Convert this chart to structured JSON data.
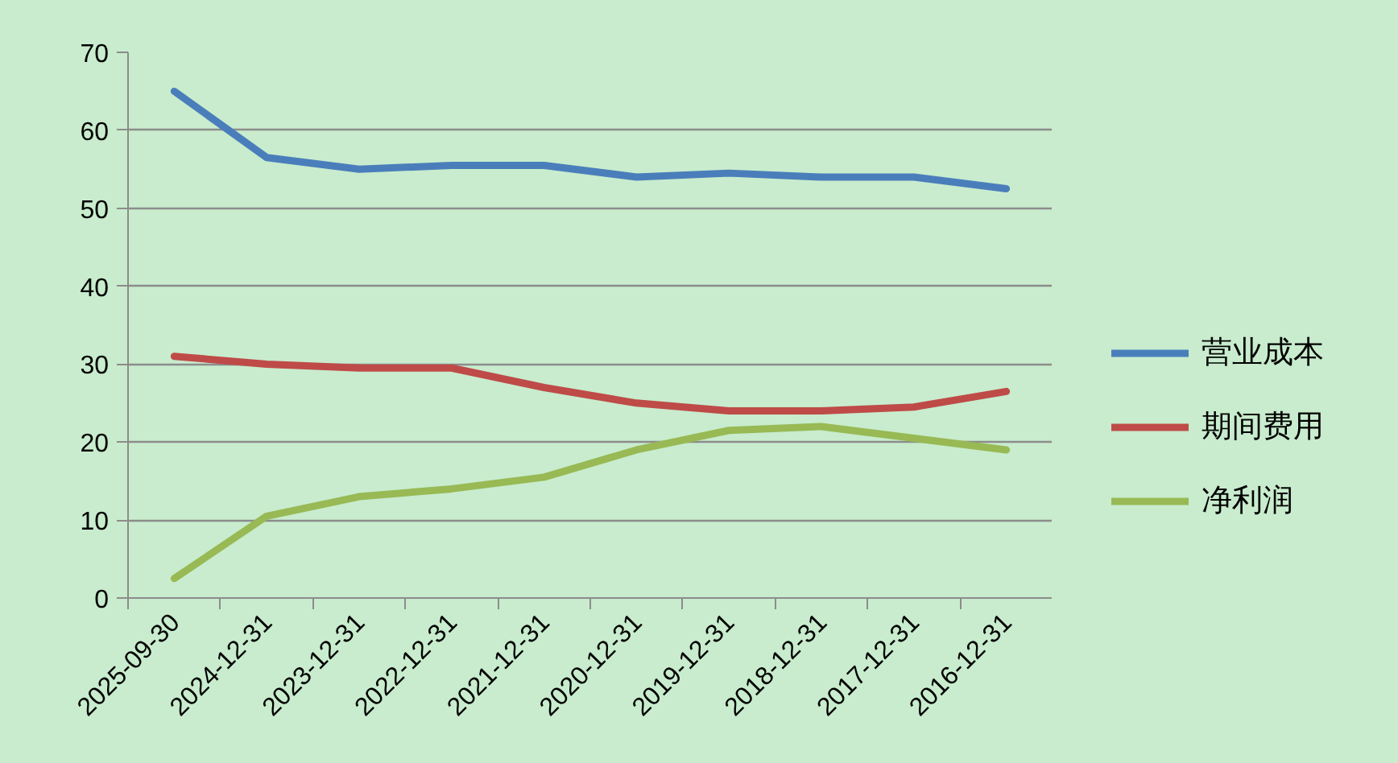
{
  "chart_data": {
    "type": "line",
    "categories": [
      "2025-09-30",
      "2024-12-31",
      "2023-12-31",
      "2022-12-31",
      "2021-12-31",
      "2020-12-31",
      "2019-12-31",
      "2018-12-31",
      "2017-12-31",
      "2016-12-31"
    ],
    "series": [
      {
        "name": "营业成本",
        "color": "#4a7ebb",
        "values": [
          65,
          56.5,
          55,
          55.5,
          55.5,
          54,
          54.5,
          54,
          54,
          52.5
        ]
      },
      {
        "name": "期间费用",
        "color": "#be4b48",
        "values": [
          31,
          30,
          29.5,
          29.5,
          27,
          25,
          24,
          24,
          24.5,
          26.5
        ]
      },
      {
        "name": "净利润",
        "color": "#98b954",
        "values": [
          2.5,
          10.5,
          13,
          14,
          15.5,
          19,
          21.5,
          22,
          20.5,
          19
        ]
      }
    ],
    "ylim": [
      0,
      70
    ],
    "yticks": [
      0,
      10,
      20,
      30,
      40,
      50,
      60,
      70
    ],
    "grid": "y",
    "legend": "right",
    "line_style": "solid"
  }
}
